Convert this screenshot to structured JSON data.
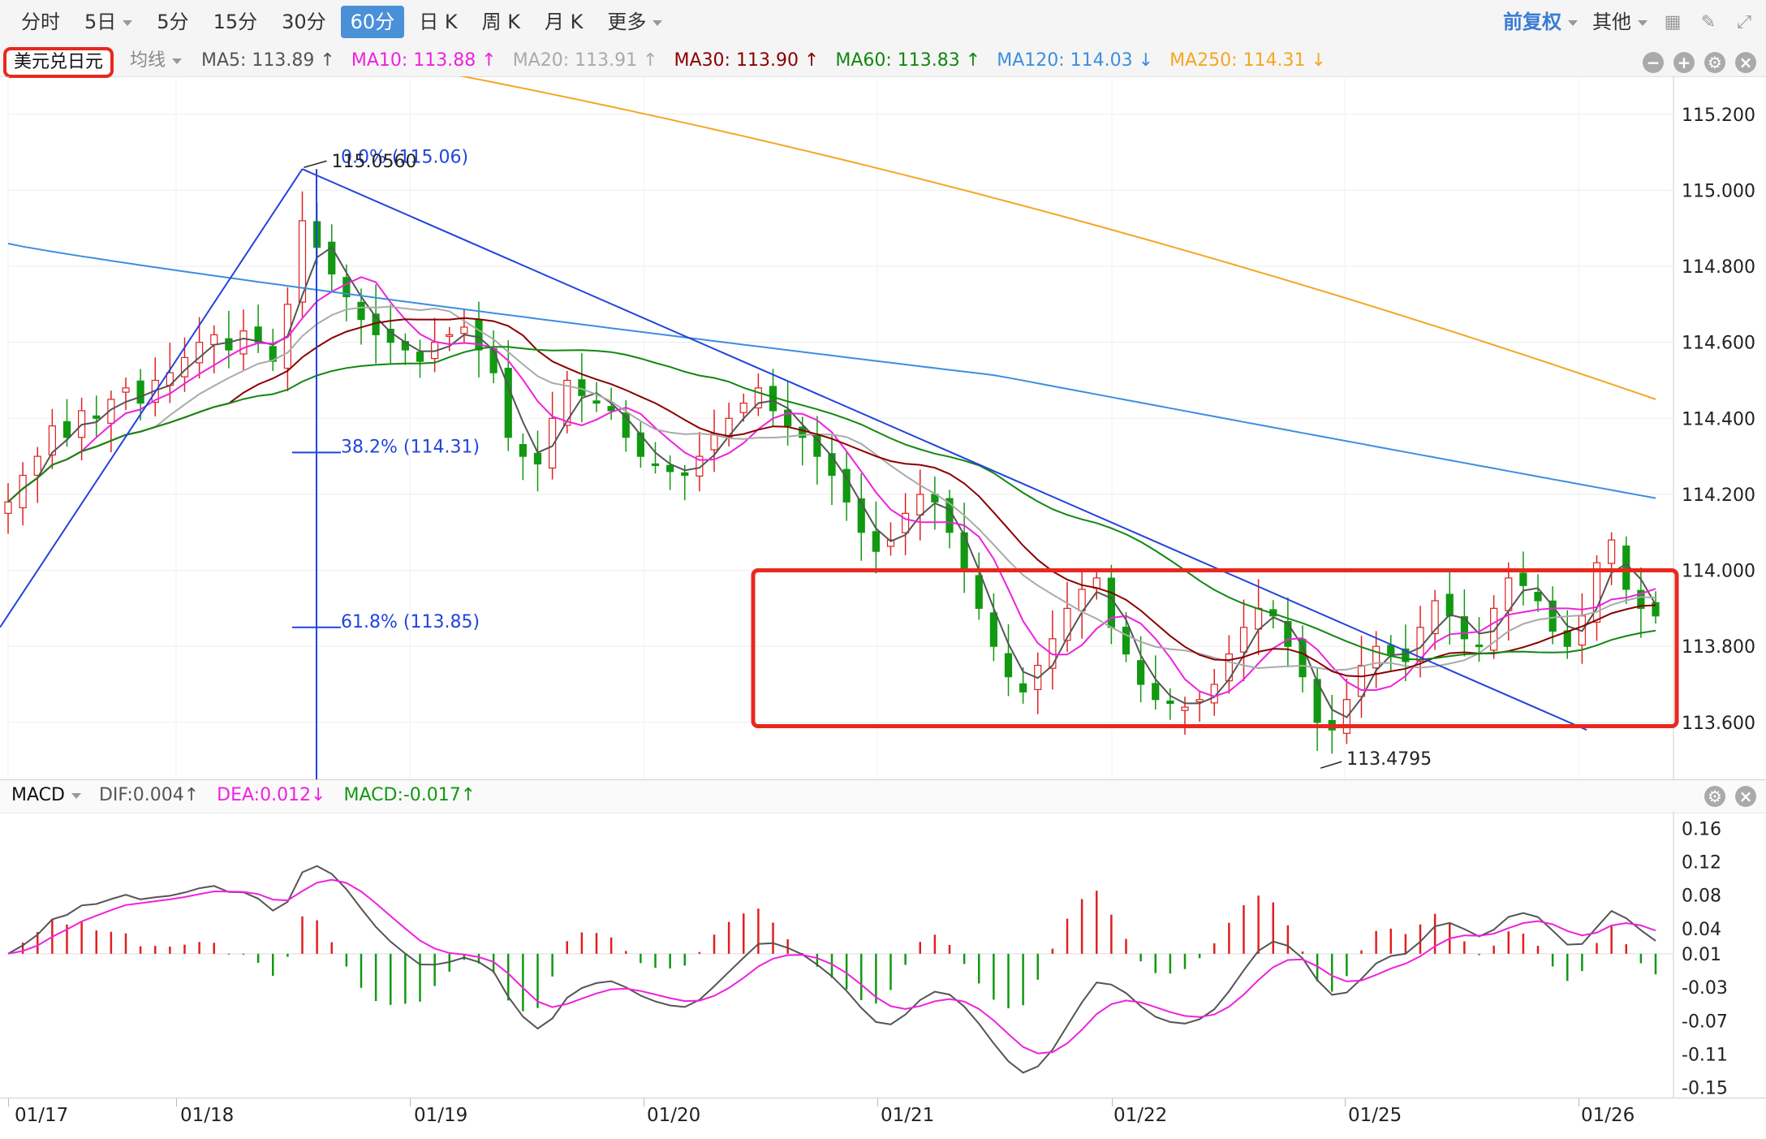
{
  "toolbar": {
    "periods": [
      "分时",
      "5日",
      "5分",
      "15分",
      "30分",
      "60分",
      "日 K",
      "周 K",
      "月 K",
      "更多"
    ],
    "active_period": "60分",
    "adjust": "前复权",
    "other": "其他"
  },
  "pair": "美元兑日元",
  "ma_type": "均线",
  "ma_legend": [
    {
      "text": "MA5: 113.89 ↑",
      "color": "#555555"
    },
    {
      "text": "MA10: 113.88 ↑",
      "color": "#ee22dd"
    },
    {
      "text": "MA20: 113.91 ↑",
      "color": "#aaaaaa"
    },
    {
      "text": "MA30: 113.90 ↑",
      "color": "#8b0000"
    },
    {
      "text": "MA60: 113.83 ↑",
      "color": "#118811"
    },
    {
      "text": "MA120: 114.03 ↓",
      "color": "#3d8ee0"
    },
    {
      "text": "MA250: 114.31 ↓",
      "color": "#f5a623"
    }
  ],
  "macd_legend": {
    "name": "MACD",
    "dif": "DIF:0.004↑",
    "dea": "DEA:0.012↓",
    "macd": "MACD:-0.017↑"
  },
  "annotations": {
    "high_label": "115.0560",
    "low_label": "113.4795",
    "fib_0": "0.0% (115.06)",
    "fib_382": "38.2% (114.31)",
    "fib_618": "61.8% (113.85)"
  },
  "colors": {
    "up": "#e02020",
    "down": "#119911",
    "ma5": "#555555",
    "ma10": "#ee22dd",
    "ma20": "#aaaaaa",
    "ma30": "#8b0000",
    "ma60": "#118811",
    "ma120": "#3d8ee0",
    "ma250": "#f5a623",
    "trendline": "#2244dd",
    "highlight_box": "#e8281e"
  },
  "chart_data": [
    {
      "type": "candlestick",
      "title": "美元兑日元",
      "x_ticks": [
        "01/17",
        "01/18",
        "01/19",
        "01/20",
        "01/21",
        "01/22",
        "01/25",
        "01/26"
      ],
      "y_ticks": [
        "115.200",
        "115.000",
        "114.800",
        "114.600",
        "114.400",
        "114.200",
        "114.000",
        "113.800",
        "113.600"
      ],
      "ylim": [
        113.45,
        115.3
      ],
      "close_series": [
        114.18,
        114.25,
        114.3,
        114.38,
        114.35,
        114.42,
        114.4,
        114.45,
        114.48,
        114.44,
        114.5,
        114.52,
        114.56,
        114.6,
        114.62,
        114.58,
        114.63,
        114.6,
        114.55,
        114.7,
        114.92,
        114.85,
        114.78,
        114.72,
        114.66,
        114.62,
        114.6,
        114.58,
        114.55,
        114.6,
        114.62,
        114.64,
        114.58,
        114.52,
        114.35,
        114.3,
        114.28,
        114.4,
        114.5,
        114.46,
        114.44,
        114.42,
        114.35,
        114.3,
        114.28,
        114.26,
        114.25,
        114.3,
        114.36,
        114.4,
        114.44,
        114.48,
        114.42,
        114.38,
        114.35,
        114.3,
        114.25,
        114.18,
        114.1,
        114.05,
        114.08,
        114.15,
        114.2,
        114.18,
        114.1,
        114.0,
        113.9,
        113.8,
        113.72,
        113.68,
        113.75,
        113.82,
        113.9,
        113.95,
        113.98,
        113.85,
        113.78,
        113.7,
        113.66,
        113.65,
        113.64,
        113.66,
        113.7,
        113.78,
        113.85,
        113.9,
        113.88,
        113.8,
        113.72,
        113.6,
        113.58,
        113.66,
        113.75,
        113.8,
        113.78,
        113.76,
        113.85,
        113.92,
        113.88,
        113.82,
        113.8,
        113.9,
        113.98,
        113.96,
        113.92,
        113.84,
        113.8,
        113.88,
        114.02,
        114.08,
        113.95,
        113.9,
        113.88
      ],
      "high": 115.056,
      "low": 113.4795,
      "fibonacci": [
        {
          "level": "0.0%",
          "price": 115.06
        },
        {
          "level": "38.2%",
          "price": 114.31
        },
        {
          "level": "61.8%",
          "price": 113.85
        }
      ],
      "ma_values": {
        "MA5": 113.89,
        "MA10": 113.88,
        "MA20": 113.91,
        "MA30": 113.9,
        "MA60": 113.83,
        "MA120": 114.03,
        "MA250": 114.31
      }
    },
    {
      "type": "bar",
      "title": "MACD",
      "y_ticks": [
        "0.16",
        "0.12",
        "0.08",
        "0.04",
        "0.01",
        "-0.03",
        "-0.07",
        "-0.11",
        "-0.15"
      ],
      "ylim": [
        -0.16,
        0.17
      ],
      "dif": 0.004,
      "dea": 0.012,
      "macd": -0.017
    }
  ]
}
